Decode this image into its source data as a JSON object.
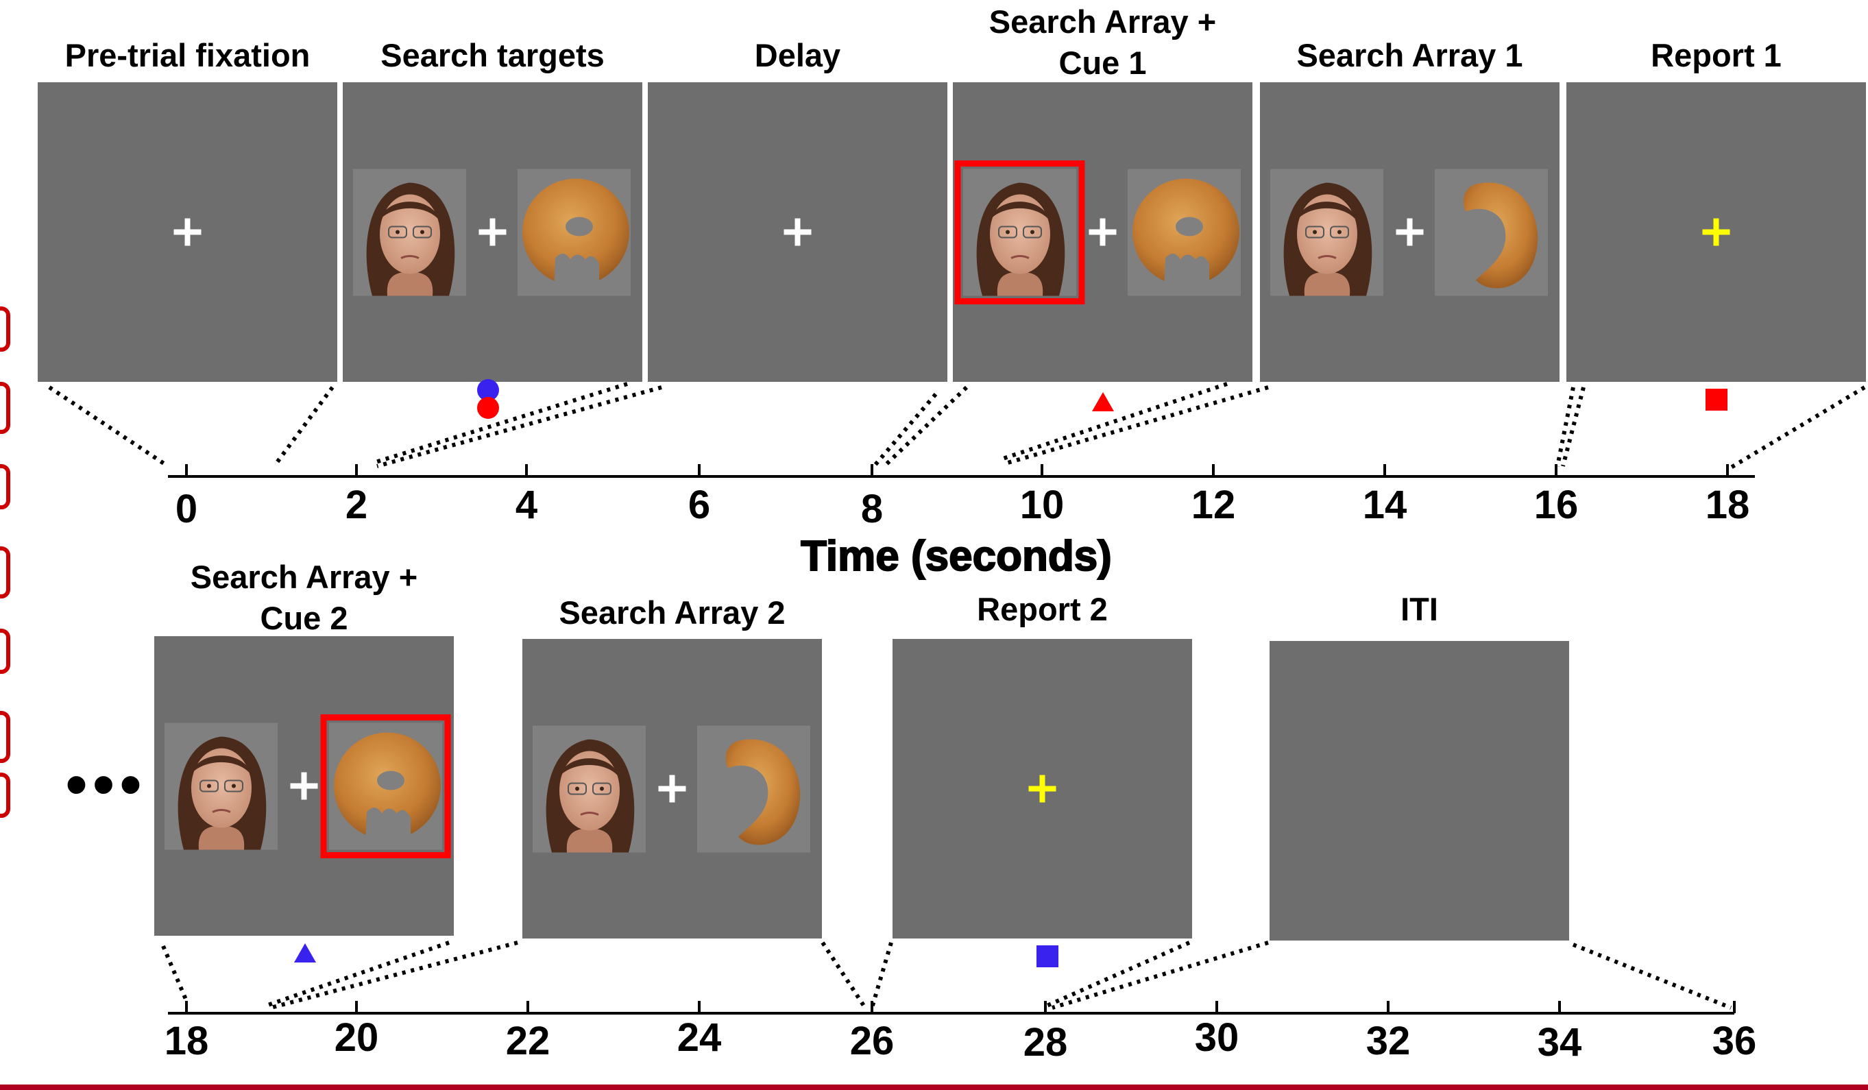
{
  "axis_label": "Time (seconds)",
  "ellipsis": "•••",
  "side_text": "",
  "colors": {
    "panel": "#6e6e6e",
    "stim_bg": "#808080",
    "cue_red": "#ff0000",
    "blue": "#3a22ee",
    "yellow": "#ffff00",
    "fixation_white": "#ffffff",
    "axis_label_color": "#cc0000"
  },
  "top_row": {
    "ticks": [
      "0",
      "2",
      "4",
      "6",
      "8",
      "10",
      "12",
      "14",
      "16",
      "18"
    ],
    "panels": [
      {
        "title": [
          "Pre-trial fixation"
        ],
        "content": "fixation",
        "fixation_color": "white"
      },
      {
        "title": [
          "Search targets"
        ],
        "content": "face-bagel",
        "fixation_color": "white",
        "marker": "blue-red-dots"
      },
      {
        "title": [
          "Delay"
        ],
        "content": "fixation",
        "fixation_color": "white"
      },
      {
        "title": [
          "Search Array +",
          "Cue 1"
        ],
        "content": "face-bagel",
        "fixation_color": "white",
        "cue": "face",
        "marker": "red-triangle"
      },
      {
        "title": [
          "Search Array 1"
        ],
        "content": "face-bagel-bitten",
        "fixation_color": "white"
      },
      {
        "title": [
          "Report 1"
        ],
        "content": "fixation",
        "fixation_color": "yellow",
        "marker": "red-square"
      }
    ]
  },
  "bottom_row": {
    "ticks": [
      "18",
      "20",
      "22",
      "24",
      "26",
      "28",
      "30",
      "32",
      "34",
      "36"
    ],
    "panels": [
      {
        "title": [
          "Search Array +",
          "Cue 2"
        ],
        "content": "face-bagel",
        "fixation_color": "white",
        "cue": "bagel",
        "marker": "blue-triangle"
      },
      {
        "title": [
          "Search Array 2"
        ],
        "content": "face-bagel-bitten",
        "fixation_color": "white"
      },
      {
        "title": [
          "Report 2"
        ],
        "content": "fixation",
        "fixation_color": "yellow",
        "marker": "blue-square"
      },
      {
        "title": [
          "ITI"
        ],
        "content": "blank"
      }
    ]
  }
}
